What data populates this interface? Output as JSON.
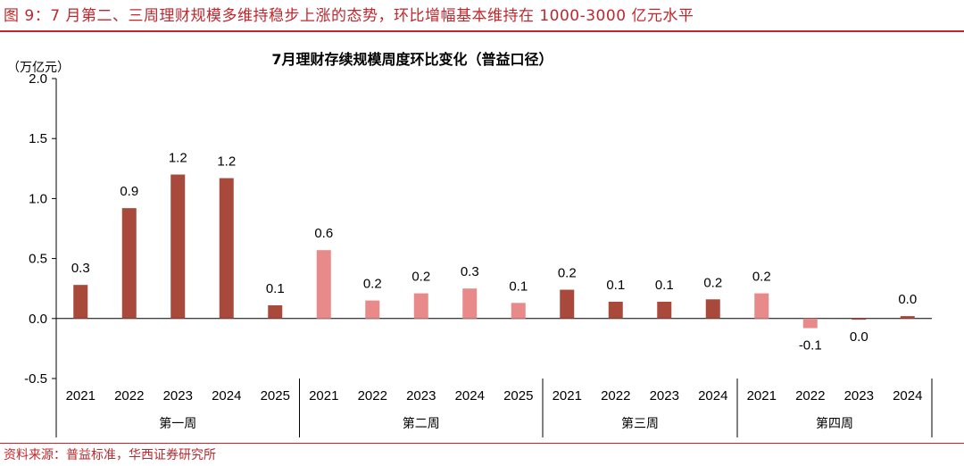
{
  "figure": {
    "title": "图 9：7 月第二、三周理财规模多维持稳步上涨的态势，环比增幅基本维持在 1000-3000 亿元水平",
    "source": "资料来源：普益标准，华西证券研究所"
  },
  "colors": {
    "accent": "#c0272d",
    "dark_bar": "#a8493b",
    "light_bar": "#e98a8a"
  },
  "chart_data": {
    "type": "bar",
    "title": "7月理财存续规模周度环比变化（普益口径）",
    "ylabel": "（万亿元）",
    "ylim": [
      -0.5,
      2.0
    ],
    "yticks": [
      "2.0",
      "1.5",
      "1.0",
      "0.5",
      "0.0",
      "-0.5"
    ],
    "yticks_values": [
      2.0,
      1.5,
      1.0,
      0.5,
      0.0,
      -0.5
    ],
    "groups": [
      {
        "name": "第一周",
        "style": "dark",
        "categories": [
          "2021",
          "2022",
          "2023",
          "2024",
          "2025"
        ],
        "values": [
          0.28,
          0.92,
          1.2,
          1.17,
          0.11
        ],
        "labels": [
          "0.3",
          "0.9",
          "1.2",
          "1.2",
          "0.1"
        ]
      },
      {
        "name": "第二周",
        "style": "light",
        "categories": [
          "2021",
          "2022",
          "2023",
          "2024",
          "2025"
        ],
        "values": [
          0.57,
          0.15,
          0.21,
          0.25,
          0.13
        ],
        "labels": [
          "0.6",
          "0.2",
          "0.2",
          "0.3",
          "0.1"
        ]
      },
      {
        "name": "第三周",
        "style": "dark",
        "categories": [
          "2021",
          "2022",
          "2023",
          "2024"
        ],
        "values": [
          0.24,
          0.14,
          0.14,
          0.16
        ],
        "labels": [
          "0.2",
          "0.1",
          "0.1",
          "0.2"
        ]
      },
      {
        "name": "第四周",
        "style": "light_dark",
        "categories": [
          "2021",
          "2022",
          "2023",
          "2024"
        ],
        "values": [
          0.21,
          -0.08,
          -0.01,
          0.02
        ],
        "labels": [
          "0.2",
          "-0.1",
          "0.0",
          "0.0"
        ]
      }
    ],
    "legend": "none",
    "grid": false
  }
}
